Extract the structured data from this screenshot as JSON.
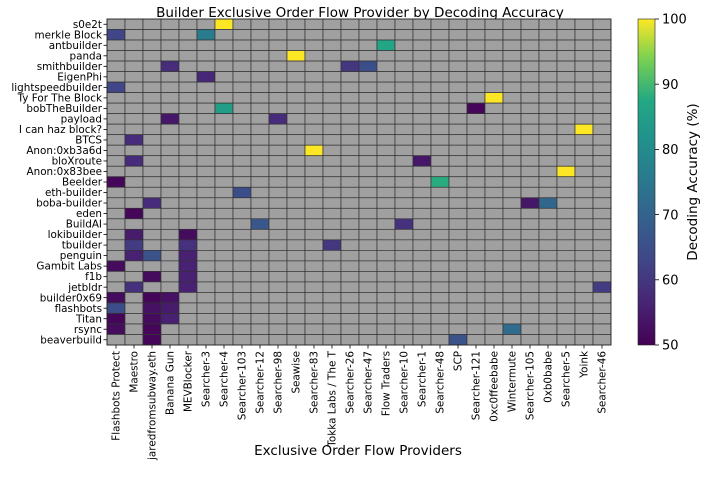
{
  "chart_data": {
    "type": "heatmap",
    "title": "Builder Exclusive Order Flow Provider by Decoding Accuracy",
    "xlabel": "Exclusive Order Flow Providers",
    "ylabel": "",
    "colorbar_label": "Decoding Accuracy (%)",
    "colorbar_ticks": [
      50,
      60,
      70,
      80,
      90,
      100
    ],
    "value_range": [
      50,
      100
    ],
    "colormap": "viridis",
    "missing_color": "#a0a0a0",
    "grid_color": "#333333",
    "x_categories": [
      "Flashbots Protect",
      "Maestro",
      "jaredfromsubway.eth",
      "Banana Gun",
      "MEVBlocker",
      "Searcher-3",
      "Searcher-4",
      "Searcher-103",
      "Searcher-12",
      "Searcher-98",
      "Seawise",
      "Searcher-83",
      "Tokka Labs / The T",
      "Searcher-26",
      "Searcher-47",
      "Flow Traders",
      "Searcher-10",
      "Searcher-1",
      "Searcher-48",
      "SCP",
      "Searcher-121",
      "0xc0ffeebabe",
      "Wintermute",
      "Searcher-105",
      "0xb0babe",
      "Searcher-5",
      "Yoink",
      "Searcher-46"
    ],
    "y_categories": [
      "s0e2t",
      "merkle Block",
      "antbuilder",
      "panda",
      "smithbuilder",
      "EigenPhi",
      "lightspeedbuilder",
      "Ty For The Block",
      "bobTheBuilder",
      "payload",
      "I can haz block?",
      "BTCS",
      "Anon:0xb3a6d",
      "bloXroute",
      "Anon:0x83bee",
      "Beelder",
      "eth-builder",
      "boba-builder",
      "eden",
      "BuildAI",
      "lokibuilder",
      "tbuilder",
      "penguin",
      "Gambit Labs",
      "f1b",
      "jetbldr",
      "builder0x69",
      "flashbots",
      "Titan",
      "rsync",
      "beaverbuild"
    ],
    "cells": [
      {
        "row": "s0e2t",
        "col": "Searcher-4",
        "value": 100
      },
      {
        "row": "merkle Block",
        "col": "Flashbots Protect",
        "value": 63
      },
      {
        "row": "merkle Block",
        "col": "Searcher-3",
        "value": 76
      },
      {
        "row": "antbuilder",
        "col": "Flow Traders",
        "value": 87
      },
      {
        "row": "panda",
        "col": "Seawise",
        "value": 100
      },
      {
        "row": "smithbuilder",
        "col": "Banana Gun",
        "value": 58
      },
      {
        "row": "smithbuilder",
        "col": "Searcher-26",
        "value": 60
      },
      {
        "row": "smithbuilder",
        "col": "Searcher-47",
        "value": 65
      },
      {
        "row": "EigenPhi",
        "col": "Searcher-3",
        "value": 57
      },
      {
        "row": "lightspeedbuilder",
        "col": "Flashbots Protect",
        "value": 63
      },
      {
        "row": "Ty For The Block",
        "col": "0xc0ffeebabe",
        "value": 100
      },
      {
        "row": "bobTheBuilder",
        "col": "Searcher-4",
        "value": 85
      },
      {
        "row": "bobTheBuilder",
        "col": "Searcher-121",
        "value": 51
      },
      {
        "row": "payload",
        "col": "Banana Gun",
        "value": 54
      },
      {
        "row": "payload",
        "col": "Searcher-98",
        "value": 58
      },
      {
        "row": "I can haz block?",
        "col": "Yoink",
        "value": 100
      },
      {
        "row": "BTCS",
        "col": "Maestro",
        "value": 58
      },
      {
        "row": "Anon:0xb3a6d",
        "col": "Searcher-83",
        "value": 100
      },
      {
        "row": "bloXroute",
        "col": "Maestro",
        "value": 58
      },
      {
        "row": "bloXroute",
        "col": "Searcher-1",
        "value": 54
      },
      {
        "row": "Anon:0x83bee",
        "col": "Searcher-5",
        "value": 100
      },
      {
        "row": "Beelder",
        "col": "Flashbots Protect",
        "value": 51
      },
      {
        "row": "Beelder",
        "col": "Searcher-48",
        "value": 88
      },
      {
        "row": "eth-builder",
        "col": "Searcher-103",
        "value": 65
      },
      {
        "row": "boba-builder",
        "col": "jaredfromsubway.eth",
        "value": 58
      },
      {
        "row": "boba-builder",
        "col": "Searcher-105",
        "value": 54
      },
      {
        "row": "boba-builder",
        "col": "0xb0babe",
        "value": 71
      },
      {
        "row": "eden",
        "col": "Maestro",
        "value": 51
      },
      {
        "row": "BuildAI",
        "col": "Searcher-12",
        "value": 67
      },
      {
        "row": "BuildAI",
        "col": "Searcher-10",
        "value": 59
      },
      {
        "row": "lokibuilder",
        "col": "Maestro",
        "value": 55
      },
      {
        "row": "lokibuilder",
        "col": "MEVBlocker",
        "value": 52
      },
      {
        "row": "tbuilder",
        "col": "Maestro",
        "value": 61
      },
      {
        "row": "tbuilder",
        "col": "MEVBlocker",
        "value": 59
      },
      {
        "row": "tbuilder",
        "col": "Tokka Labs / The T",
        "value": 60
      },
      {
        "row": "penguin",
        "col": "Maestro",
        "value": 56
      },
      {
        "row": "penguin",
        "col": "jaredfromsubway.eth",
        "value": 66
      },
      {
        "row": "penguin",
        "col": "MEVBlocker",
        "value": 56
      },
      {
        "row": "Gambit Labs",
        "col": "Flashbots Protect",
        "value": 52
      },
      {
        "row": "Gambit Labs",
        "col": "MEVBlocker",
        "value": 56
      },
      {
        "row": "f1b",
        "col": "jaredfromsubway.eth",
        "value": 52
      },
      {
        "row": "f1b",
        "col": "MEVBlocker",
        "value": 56
      },
      {
        "row": "jetbldr",
        "col": "Maestro",
        "value": 59
      },
      {
        "row": "jetbldr",
        "col": "MEVBlocker",
        "value": 56
      },
      {
        "row": "jetbldr",
        "col": "Searcher-46",
        "value": 61
      },
      {
        "row": "builder0x69",
        "col": "Flashbots Protect",
        "value": 52
      },
      {
        "row": "builder0x69",
        "col": "jaredfromsubway.eth",
        "value": 51
      },
      {
        "row": "builder0x69",
        "col": "Banana Gun",
        "value": 53
      },
      {
        "row": "flashbots",
        "col": "Flashbots Protect",
        "value": 65
      },
      {
        "row": "flashbots",
        "col": "jaredfromsubway.eth",
        "value": 53
      },
      {
        "row": "flashbots",
        "col": "Banana Gun",
        "value": 55
      },
      {
        "row": "Titan",
        "col": "Flashbots Protect",
        "value": 51
      },
      {
        "row": "Titan",
        "col": "jaredfromsubway.eth",
        "value": 52
      },
      {
        "row": "Titan",
        "col": "Banana Gun",
        "value": 56
      },
      {
        "row": "rsync",
        "col": "Flashbots Protect",
        "value": 52
      },
      {
        "row": "rsync",
        "col": "jaredfromsubway.eth",
        "value": 51
      },
      {
        "row": "rsync",
        "col": "Wintermute",
        "value": 72
      },
      {
        "row": "beaverbuild",
        "col": "jaredfromsubway.eth",
        "value": 51
      },
      {
        "row": "beaverbuild",
        "col": "SCP",
        "value": 66
      }
    ]
  }
}
